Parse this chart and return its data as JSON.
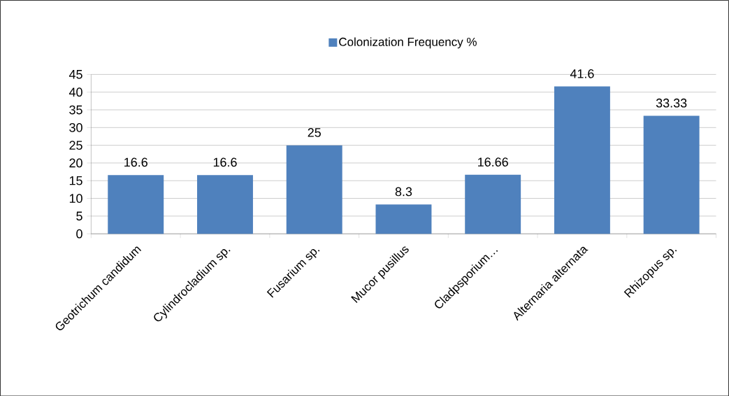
{
  "chart_data": {
    "type": "bar",
    "categories": [
      "Geotrichum candidum",
      "Cylindrocladium sp.",
      "Fusarium sp.",
      "Mucor pusillus",
      "Cladpsporium…",
      "Alternaria alternata",
      "Rhizopus sp."
    ],
    "series": [
      {
        "name": "Colonization Frequency %",
        "color": "#4f81bd",
        "values": [
          16.6,
          16.6,
          25,
          8.3,
          16.66,
          41.6,
          33.33
        ]
      }
    ],
    "ylim": [
      0,
      45
    ],
    "yticks": [
      0,
      5,
      10,
      15,
      20,
      25,
      30,
      35,
      40,
      45
    ],
    "grid": "y",
    "legend": "top",
    "data_labels": true
  }
}
